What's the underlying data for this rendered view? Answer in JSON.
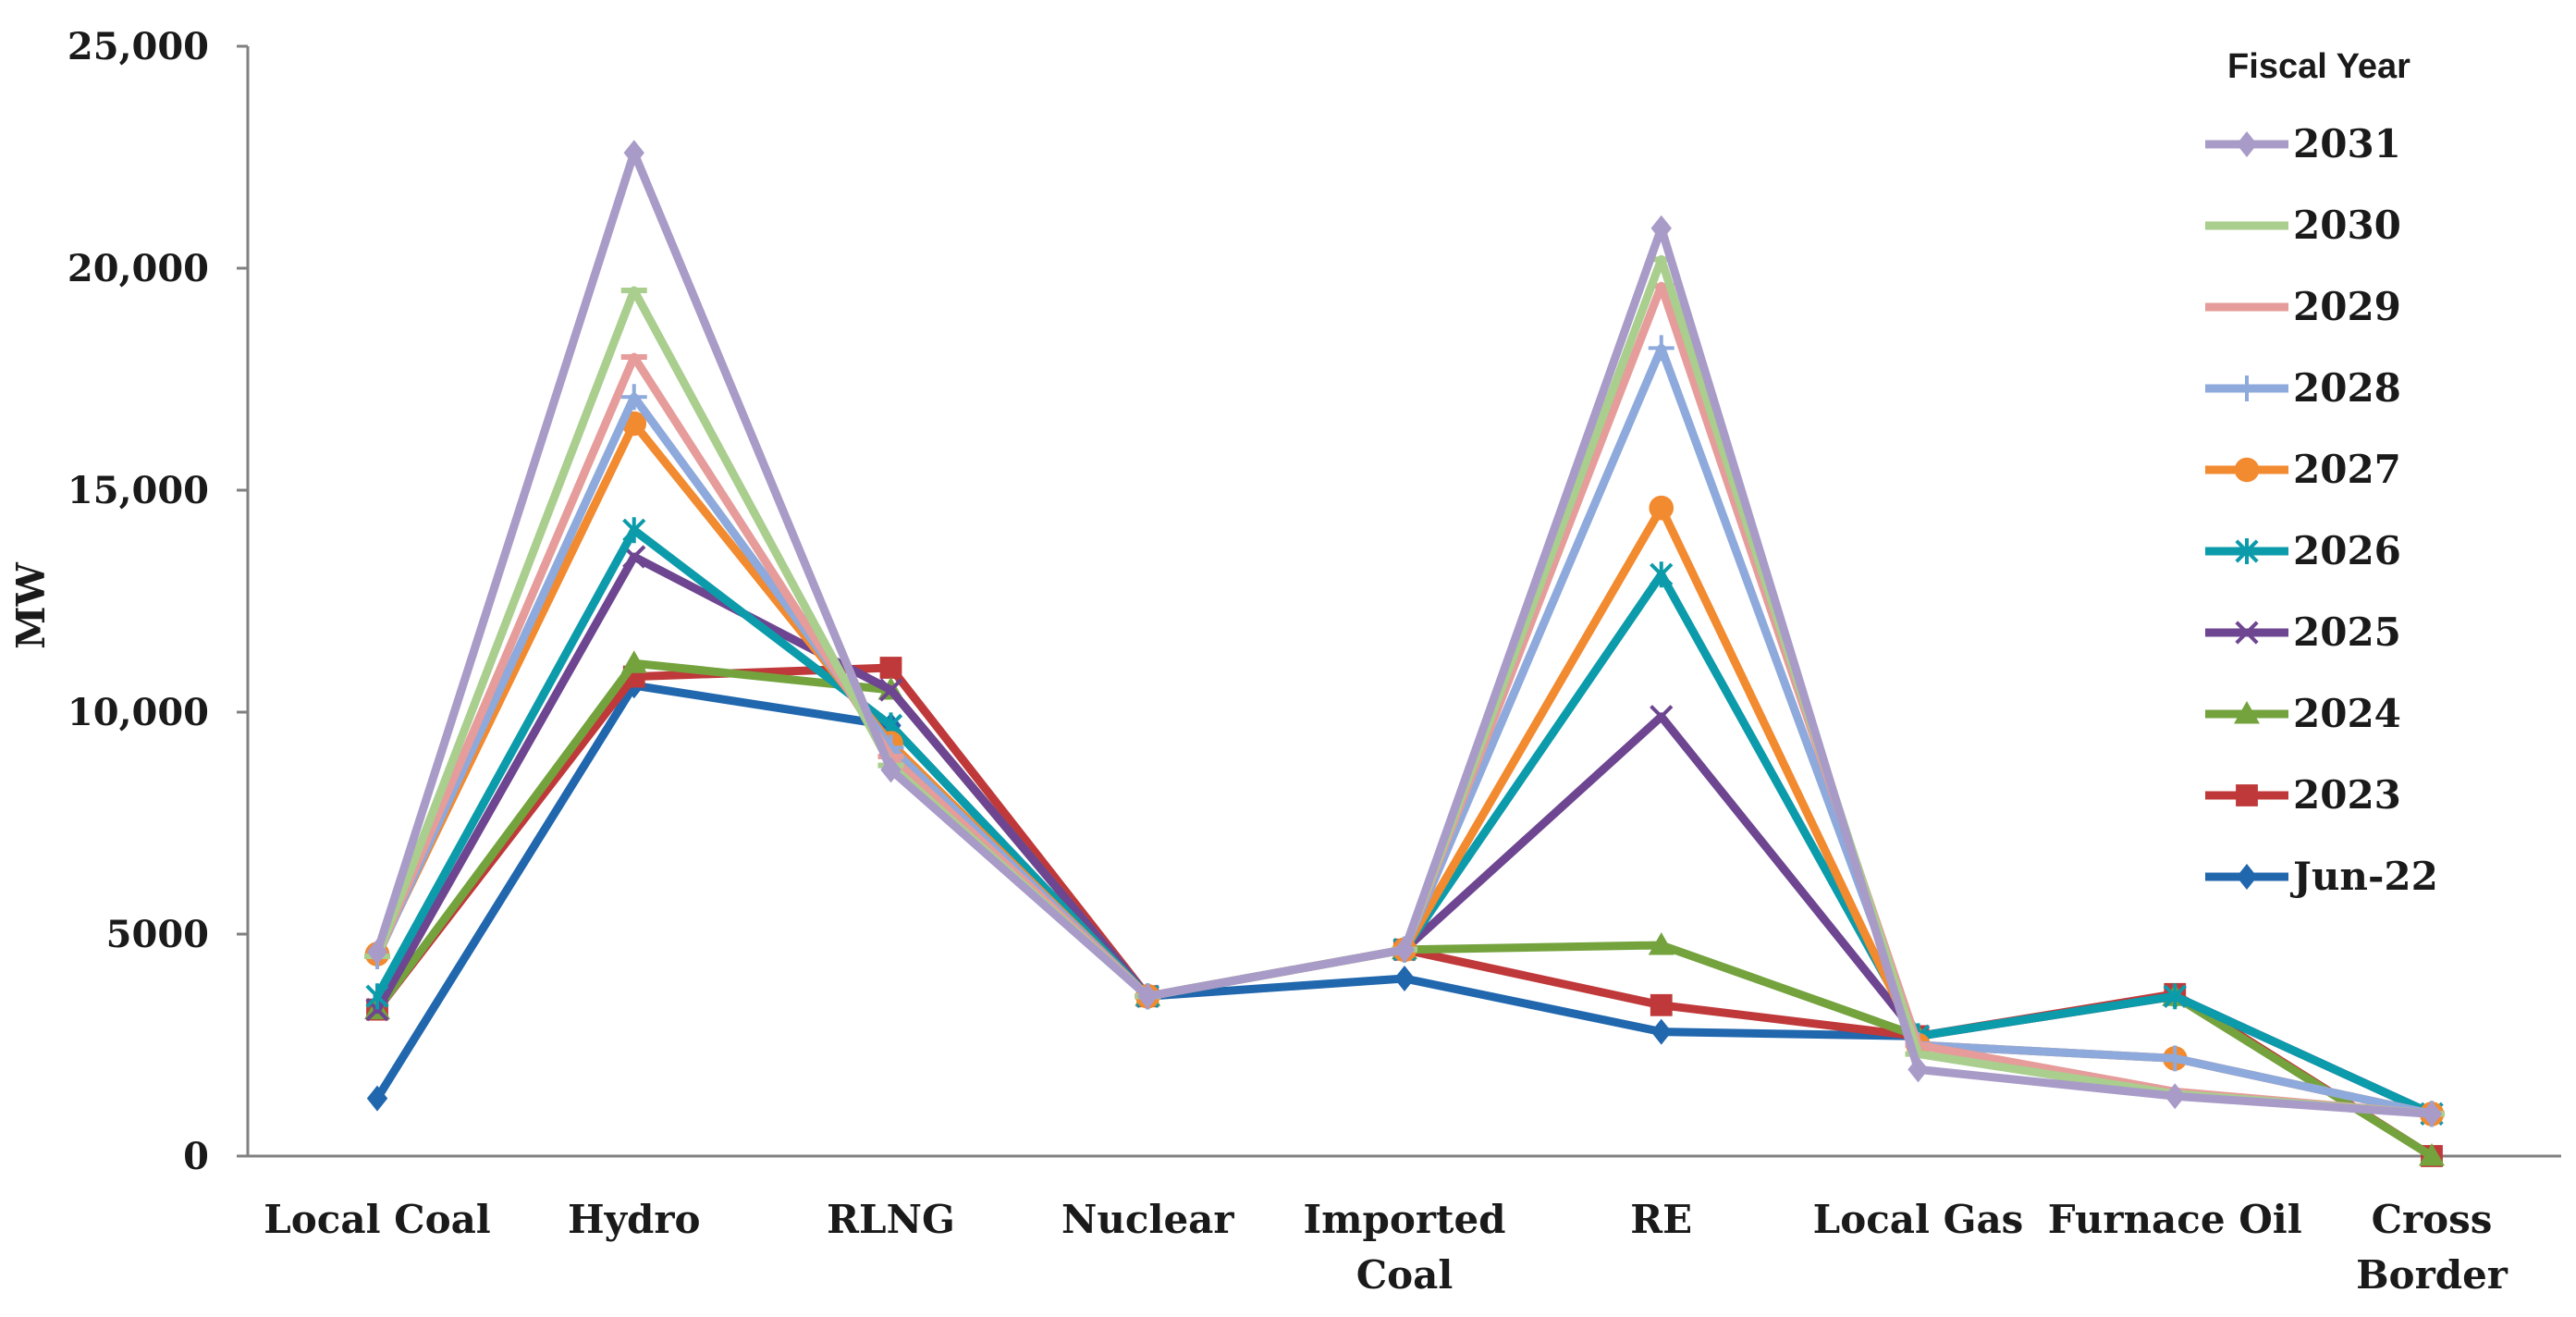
{
  "chart_data": {
    "type": "line",
    "title": "",
    "xlabel": "",
    "ylabel": "MW",
    "ylim": [
      0,
      25000
    ],
    "yticks": [
      0,
      5000,
      10000,
      15000,
      20000,
      25000
    ],
    "ytick_labels": [
      "0",
      "5000",
      "10,000",
      "15,000",
      "20,000",
      "25,000"
    ],
    "categories": [
      [
        "Local Coal"
      ],
      [
        "Hydro"
      ],
      [
        "RLNG"
      ],
      [
        "Nuclear"
      ],
      [
        "Imported",
        "Coal"
      ],
      [
        "RE"
      ],
      [
        "Local Gas"
      ],
      [
        "Furnace Oil"
      ],
      [
        "Cross",
        "Border"
      ]
    ],
    "legend_title": "Fiscal Year",
    "legend_position": "right",
    "series": [
      {
        "name": "2031",
        "color": "#A99BC8",
        "marker": "diamond",
        "values": [
          4600,
          22600,
          8700,
          3600,
          4650,
          20900,
          1950,
          1350,
          950
        ]
      },
      {
        "name": "2030",
        "color": "#A9CE8E",
        "marker": "dash",
        "values": [
          4500,
          19500,
          8800,
          3600,
          4650,
          20200,
          2300,
          1400,
          950
        ]
      },
      {
        "name": "2029",
        "color": "#E59C9A",
        "marker": "dash",
        "values": [
          4500,
          18000,
          9000,
          3600,
          4650,
          19600,
          2500,
          1450,
          950
        ]
      },
      {
        "name": "2028",
        "color": "#8EA9DB",
        "marker": "plus",
        "values": [
          4500,
          17100,
          9200,
          3600,
          4650,
          18200,
          2500,
          2200,
          950
        ]
      },
      {
        "name": "2027",
        "color": "#F28A2F",
        "marker": "circle",
        "values": [
          4550,
          16500,
          9300,
          3600,
          4650,
          14600,
          2500,
          2200,
          950
        ]
      },
      {
        "name": "2026",
        "color": "#0C9BAA",
        "marker": "asterisk",
        "values": [
          3600,
          14100,
          9700,
          3600,
          4650,
          13100,
          2700,
          3600,
          950
        ]
      },
      {
        "name": "2025",
        "color": "#6E4590",
        "marker": "x",
        "values": [
          3300,
          13500,
          10500,
          3600,
          4650,
          9900,
          2700,
          3600,
          950
        ]
      },
      {
        "name": "2024",
        "color": "#74A33E",
        "marker": "triangle",
        "values": [
          3300,
          11100,
          10500,
          3600,
          4650,
          4750,
          2700,
          3600,
          0
        ]
      },
      {
        "name": "2023",
        "color": "#C0393A",
        "marker": "square",
        "values": [
          3300,
          10800,
          11000,
          3600,
          4650,
          3400,
          2700,
          3650,
          0
        ]
      },
      {
        "name": "Jun-22",
        "color": "#2167AE",
        "marker": "diamond",
        "values": [
          1300,
          10600,
          9700,
          3600,
          4000,
          2800,
          2700,
          3600,
          950
        ]
      }
    ]
  }
}
